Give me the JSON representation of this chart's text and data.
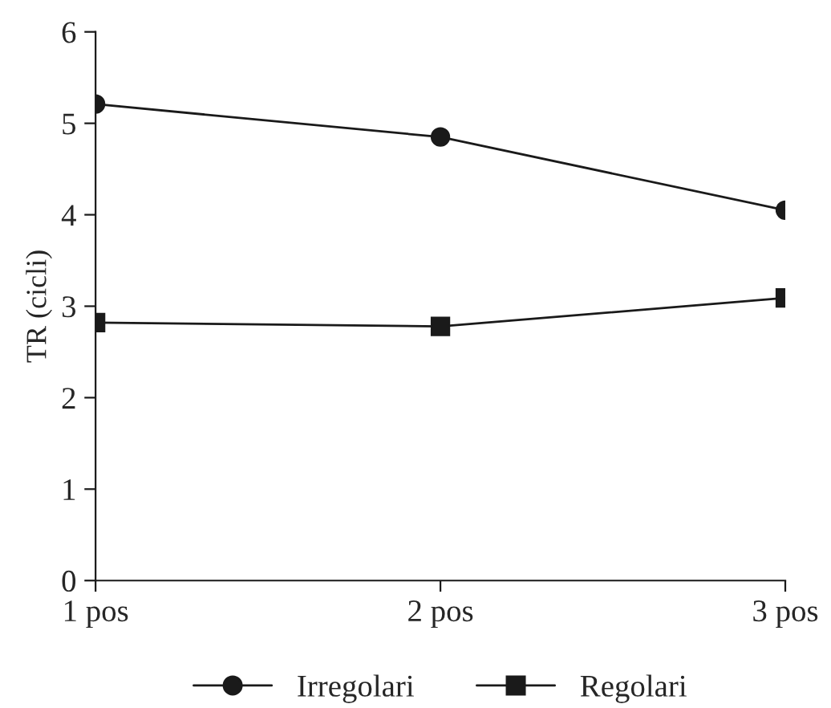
{
  "chart_data": {
    "type": "line",
    "ylabel": "TR (cicli)",
    "categories": [
      "1 pos",
      "2 pos",
      "3 pos"
    ],
    "series": [
      {
        "name": "Irregolari",
        "color": "#1a1a1a",
        "marker": "circle",
        "values": [
          5.21,
          4.85,
          4.05
        ]
      },
      {
        "name": "Regolari",
        "color": "#1a1a1a",
        "marker": "square",
        "values": [
          2.82,
          2.78,
          3.09
        ]
      }
    ],
    "ylim": [
      0,
      6
    ],
    "yticks": [
      0,
      1,
      2,
      3,
      4,
      5,
      6
    ],
    "grid": false,
    "legend": "bottom",
    "line_style": "solid"
  }
}
